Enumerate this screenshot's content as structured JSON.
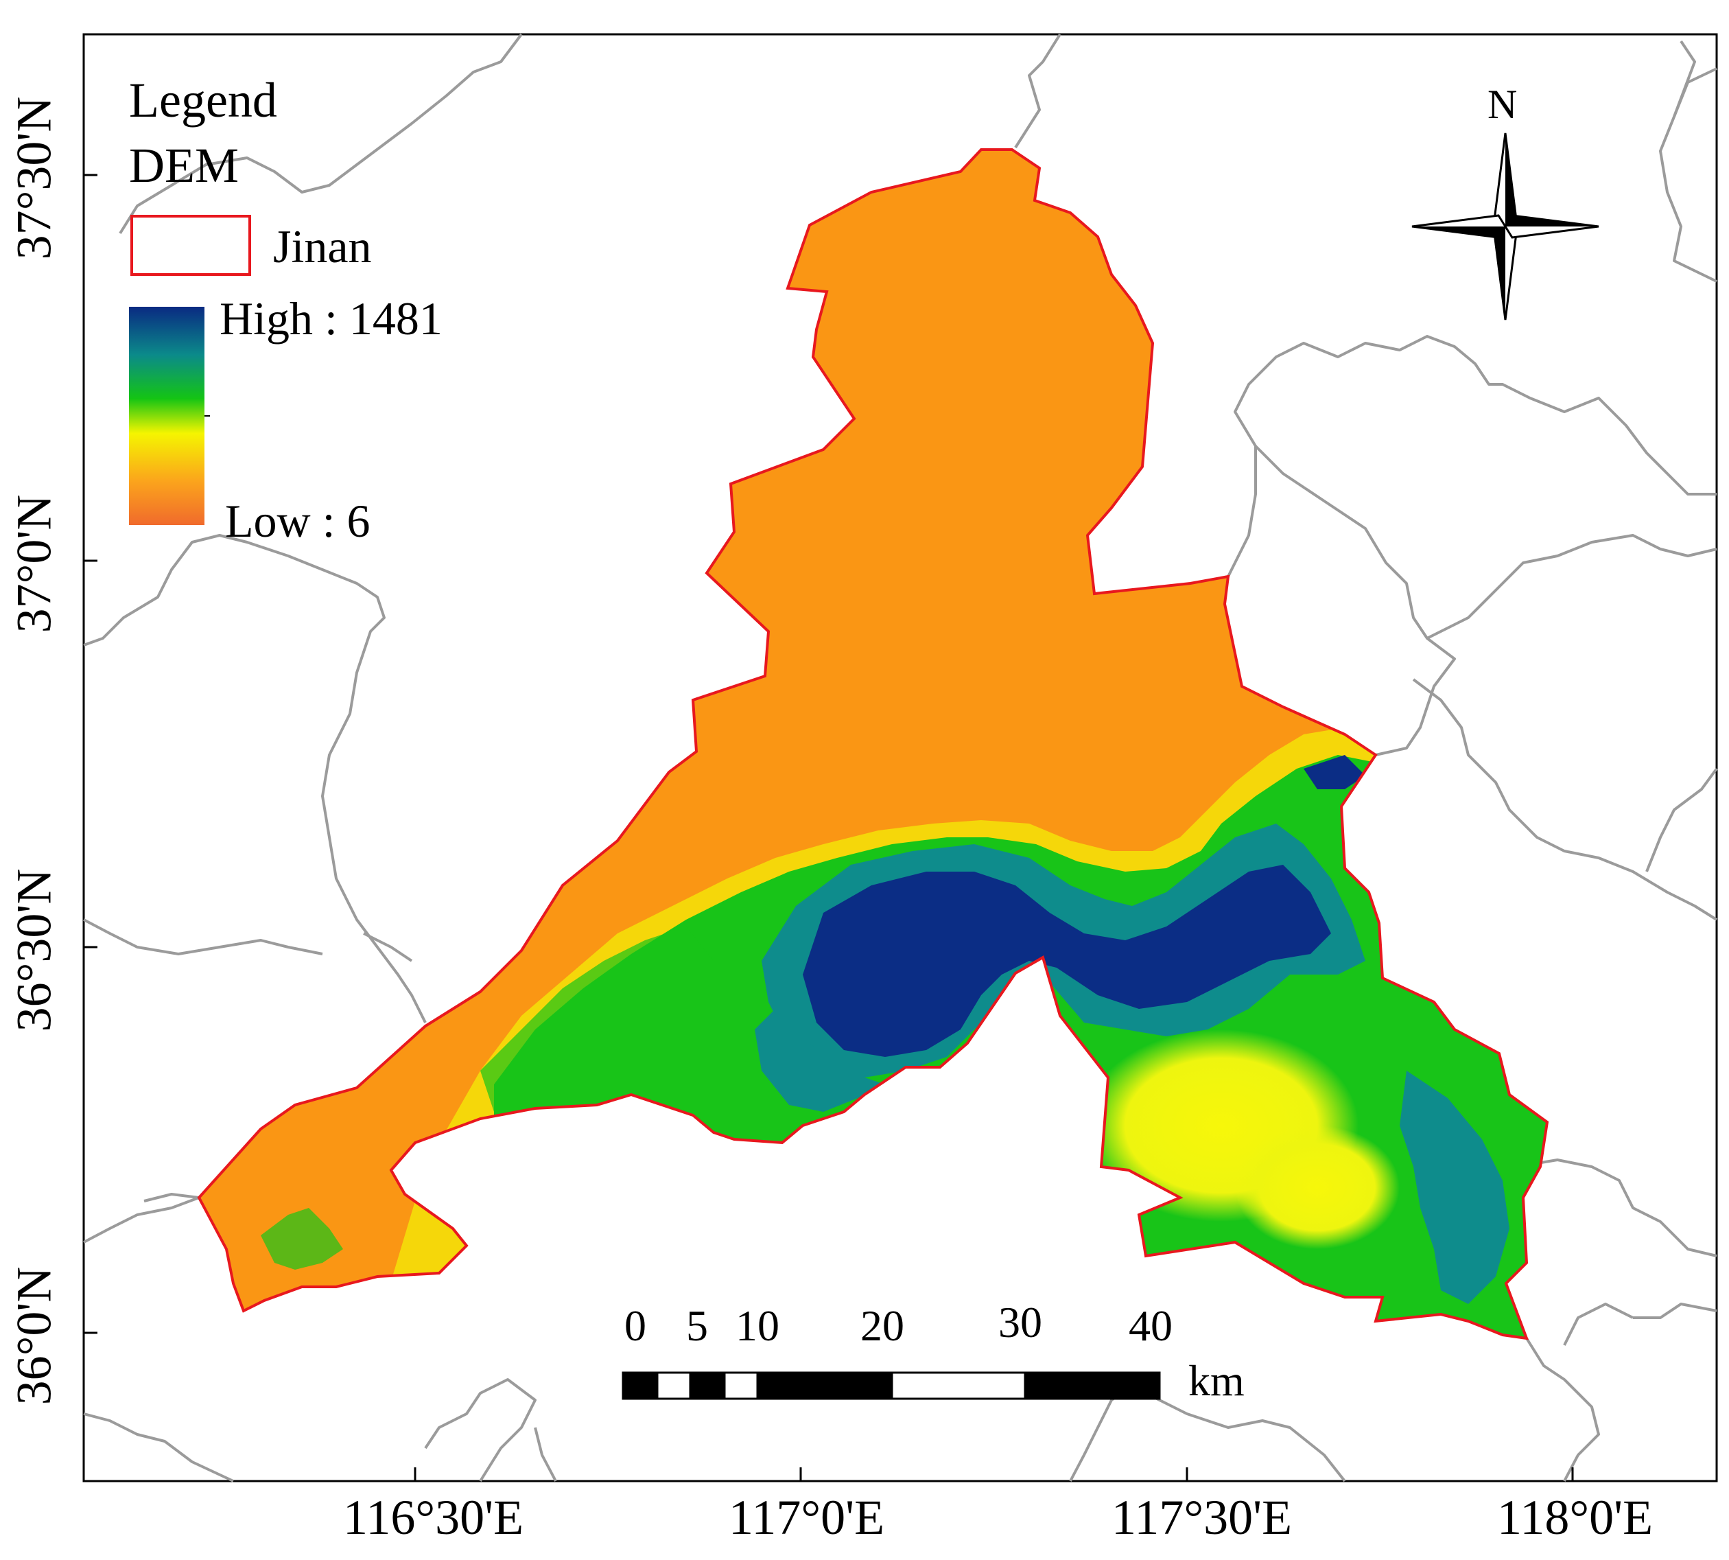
{
  "legend": {
    "title": "Legend",
    "layer": "DEM",
    "boundary_label": "Jinan",
    "high_label": "High : 1481",
    "low_label": "Low : 6",
    "boundary_color": "#e8181e",
    "ramp_colors": [
      "#0a2a82",
      "#0b8a8a",
      "#14c414",
      "#f5f500",
      "#fba41c",
      "#f06a2c"
    ]
  },
  "north_arrow": {
    "label": "N",
    "icon": "compass-rose-icon"
  },
  "scale_bar": {
    "ticks": [
      "0",
      "5",
      "10",
      "20",
      "30",
      "40"
    ],
    "unit": "km"
  },
  "graticule": {
    "lat_labels": [
      "37°30'N",
      "37°0'N",
      "36°30'N",
      "36°0'N"
    ],
    "lon_labels": [
      "116°30'E",
      "117°0'E",
      "117°30'E",
      "118°0'E"
    ]
  },
  "elevation": {
    "min": 6,
    "max": 1481
  },
  "colors": {
    "neighbor_border": "#9b9b9b",
    "frame": "#000000",
    "lowland": "#fa9614",
    "upland_yellow": "#f2f20a",
    "upland_green": "#18c418",
    "upland_teal": "#0e8c8c",
    "peak_blue": "#0b2d85"
  }
}
